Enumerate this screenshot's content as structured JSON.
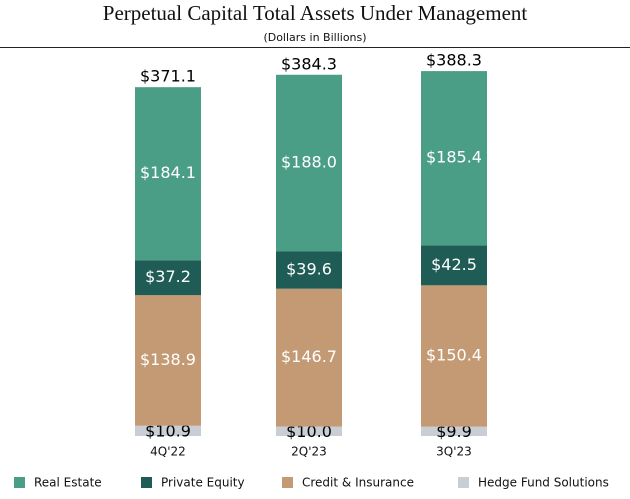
{
  "chart_data": {
    "type": "stacked-bar",
    "title": "Perpetual Capital Total Assets Under Management",
    "subtitle": "(Dollars in Billions)",
    "categories": [
      "4Q'22",
      "2Q'23",
      "3Q'23"
    ],
    "series": [
      {
        "name": "Hedge Fund Solutions",
        "color": "#c9cdd4",
        "values": [
          10.9,
          10.0,
          9.9
        ],
        "value_labels": [
          "$10.9",
          "$10.0",
          "$9.9"
        ]
      },
      {
        "name": "Credit & Insurance",
        "color": "#c49a74",
        "values": [
          138.9,
          146.7,
          150.4
        ],
        "value_labels": [
          "$138.9",
          "$146.7",
          "$150.4"
        ]
      },
      {
        "name": "Private Equity",
        "color": "#1f5c55",
        "values": [
          37.2,
          39.6,
          42.5
        ],
        "value_labels": [
          "$37.2",
          "$39.6",
          "$42.5"
        ]
      },
      {
        "name": "Real Estate",
        "color": "#4a9e85",
        "values": [
          184.1,
          188.0,
          185.4
        ],
        "value_labels": [
          "$184.1",
          "$188.0",
          "$185.4"
        ]
      }
    ],
    "totals": {
      "values": [
        371.1,
        384.3,
        388.3
      ],
      "value_labels": [
        "$371.1",
        "$384.3",
        "$388.3"
      ]
    }
  }
}
